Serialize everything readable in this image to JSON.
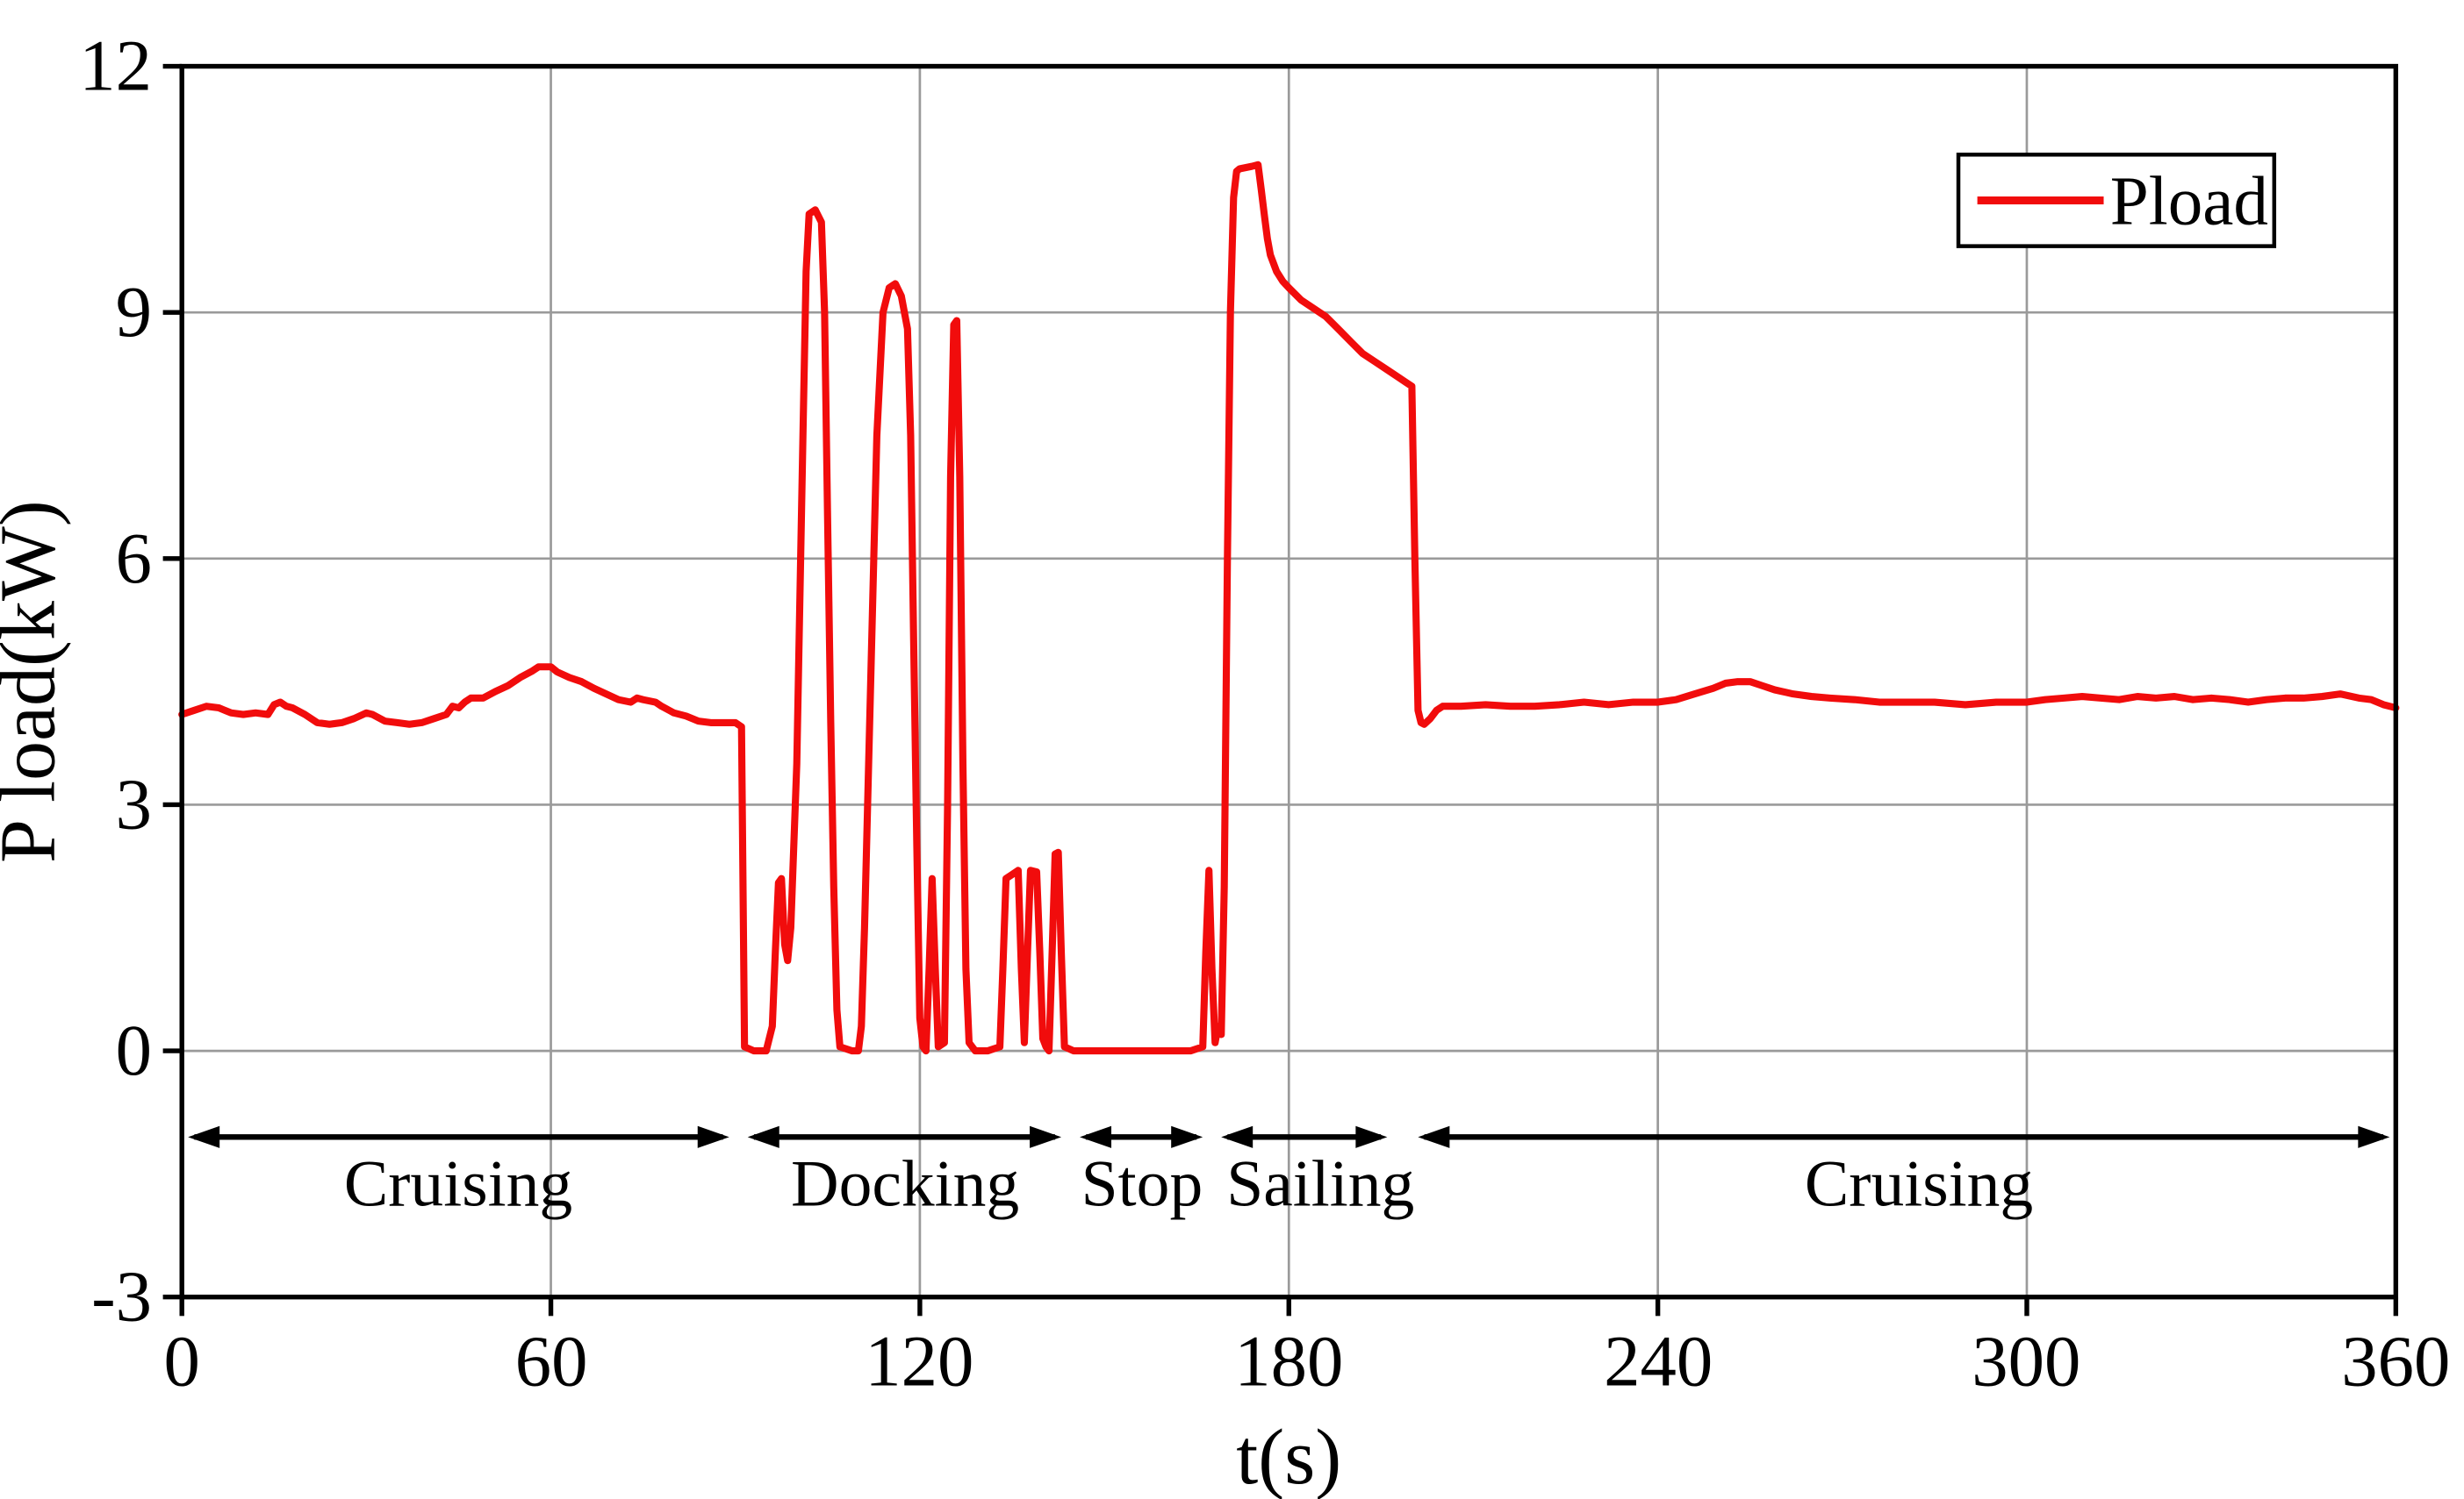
{
  "chart_data": {
    "type": "line",
    "title": "",
    "xlabel": "t(s)",
    "ylabel": "P load(kW)",
    "xlim": [
      0,
      360
    ],
    "ylim": [
      -3,
      12
    ],
    "x_ticks": [
      0,
      60,
      120,
      180,
      240,
      300,
      360
    ],
    "y_ticks": [
      -3,
      0,
      3,
      6,
      9,
      12
    ],
    "grid": true,
    "grid_color": "#9a9a9a",
    "axis_color": "#000000",
    "legend": {
      "position": "top-right",
      "entries": [
        {
          "label": "Pload",
          "color": "#f10c0c"
        }
      ]
    },
    "series": [
      {
        "name": "Pload",
        "color": "#f10c0c",
        "points": [
          [
            0,
            4.1
          ],
          [
            2,
            4.15
          ],
          [
            4,
            4.2
          ],
          [
            6,
            4.18
          ],
          [
            8,
            4.12
          ],
          [
            10,
            4.1
          ],
          [
            12,
            4.12
          ],
          [
            14,
            4.1
          ],
          [
            15,
            4.22
          ],
          [
            16,
            4.25
          ],
          [
            17,
            4.2
          ],
          [
            18,
            4.18
          ],
          [
            20,
            4.1
          ],
          [
            22,
            4.0
          ],
          [
            24,
            3.98
          ],
          [
            26,
            4.0
          ],
          [
            28,
            4.05
          ],
          [
            30,
            4.12
          ],
          [
            31,
            4.1
          ],
          [
            33,
            4.02
          ],
          [
            35,
            4.0
          ],
          [
            37,
            3.98
          ],
          [
            39,
            4.0
          ],
          [
            41,
            4.05
          ],
          [
            43,
            4.1
          ],
          [
            44,
            4.2
          ],
          [
            45,
            4.18
          ],
          [
            46,
            4.25
          ],
          [
            47,
            4.3
          ],
          [
            49,
            4.3
          ],
          [
            51,
            4.38
          ],
          [
            53,
            4.45
          ],
          [
            55,
            4.55
          ],
          [
            57,
            4.63
          ],
          [
            58,
            4.68
          ],
          [
            60,
            4.68
          ],
          [
            61,
            4.62
          ],
          [
            63,
            4.55
          ],
          [
            65,
            4.5
          ],
          [
            67,
            4.42
          ],
          [
            69,
            4.35
          ],
          [
            71,
            4.28
          ],
          [
            73,
            4.25
          ],
          [
            74,
            4.3
          ],
          [
            75,
            4.28
          ],
          [
            77,
            4.25
          ],
          [
            78,
            4.2
          ],
          [
            80,
            4.12
          ],
          [
            82,
            4.08
          ],
          [
            84,
            4.02
          ],
          [
            86,
            4.0
          ],
          [
            88,
            4.0
          ],
          [
            90,
            4.0
          ],
          [
            91,
            3.95
          ],
          [
            91.5,
            0.05
          ],
          [
            93,
            0.0
          ],
          [
            95,
            0.0
          ],
          [
            96,
            0.3
          ],
          [
            96.5,
            1.2
          ],
          [
            97,
            2.05
          ],
          [
            97.5,
            2.1
          ],
          [
            98,
            1.3
          ],
          [
            98.5,
            1.1
          ],
          [
            99,
            1.5
          ],
          [
            100,
            3.5
          ],
          [
            101,
            7.5
          ],
          [
            101.5,
            9.5
          ],
          [
            102,
            10.2
          ],
          [
            103,
            10.25
          ],
          [
            104,
            10.1
          ],
          [
            104.5,
            9.0
          ],
          [
            105,
            6.5
          ],
          [
            105.5,
            4.0
          ],
          [
            106,
            2.0
          ],
          [
            106.5,
            0.5
          ],
          [
            107,
            0.05
          ],
          [
            109,
            0.0
          ],
          [
            110,
            0.0
          ],
          [
            110.5,
            0.3
          ],
          [
            111,
            1.5
          ],
          [
            112,
            4.5
          ],
          [
            113,
            7.5
          ],
          [
            114,
            9.0
          ],
          [
            115,
            9.3
          ],
          [
            116,
            9.35
          ],
          [
            117,
            9.2
          ],
          [
            118,
            8.8
          ],
          [
            118.5,
            7.5
          ],
          [
            119,
            5.0
          ],
          [
            119.5,
            2.5
          ],
          [
            120,
            0.4
          ],
          [
            120.5,
            0.05
          ],
          [
            121,
            0.0
          ],
          [
            121.5,
            1.0
          ],
          [
            122,
            2.1
          ],
          [
            122.5,
            1.0
          ],
          [
            123,
            0.05
          ],
          [
            124,
            0.1
          ],
          [
            124.5,
            3.0
          ],
          [
            125,
            7.0
          ],
          [
            125.5,
            8.85
          ],
          [
            126,
            8.9
          ],
          [
            126.5,
            7.0
          ],
          [
            127,
            3.5
          ],
          [
            127.5,
            1.0
          ],
          [
            128,
            0.1
          ],
          [
            129,
            0.0
          ],
          [
            131,
            0.0
          ],
          [
            133,
            0.05
          ],
          [
            133.5,
            1.0
          ],
          [
            134,
            2.1
          ],
          [
            135,
            2.15
          ],
          [
            136,
            2.2
          ],
          [
            136.5,
            1.0
          ],
          [
            137,
            0.1
          ],
          [
            137.5,
            1.2
          ],
          [
            138,
            2.2
          ],
          [
            139,
            2.18
          ],
          [
            139.5,
            1.2
          ],
          [
            140,
            0.15
          ],
          [
            140.5,
            0.05
          ],
          [
            141,
            0.0
          ],
          [
            141.5,
            1.2
          ],
          [
            142,
            2.4
          ],
          [
            142.5,
            2.42
          ],
          [
            143,
            1.2
          ],
          [
            143.5,
            0.05
          ],
          [
            145,
            0.0
          ],
          [
            150,
            0.0
          ],
          [
            155,
            0.0
          ],
          [
            160,
            0.0
          ],
          [
            164,
            0.0
          ],
          [
            166,
            0.05
          ],
          [
            166.5,
            1.2
          ],
          [
            167,
            2.2
          ],
          [
            167.5,
            1.0
          ],
          [
            168,
            0.1
          ],
          [
            168.5,
            0.3
          ],
          [
            169,
            0.2
          ],
          [
            169.5,
            2.0
          ],
          [
            170,
            6.0
          ],
          [
            170.5,
            9.0
          ],
          [
            171,
            10.4
          ],
          [
            171.5,
            10.72
          ],
          [
            172,
            10.75
          ],
          [
            174,
            10.78
          ],
          [
            175,
            10.8
          ],
          [
            175.5,
            10.5
          ],
          [
            176,
            10.2
          ],
          [
            176.5,
            9.9
          ],
          [
            177,
            9.7
          ],
          [
            178,
            9.5
          ],
          [
            179,
            9.38
          ],
          [
            180,
            9.3
          ],
          [
            182,
            9.15
          ],
          [
            184,
            9.05
          ],
          [
            186,
            8.95
          ],
          [
            188,
            8.8
          ],
          [
            190,
            8.65
          ],
          [
            192,
            8.5
          ],
          [
            194,
            8.4
          ],
          [
            196,
            8.3
          ],
          [
            198,
            8.2
          ],
          [
            199,
            8.15
          ],
          [
            200,
            8.1
          ],
          [
            200.5,
            6.0
          ],
          [
            201,
            4.15
          ],
          [
            201.5,
            4.0
          ],
          [
            202,
            3.98
          ],
          [
            203,
            4.05
          ],
          [
            204,
            4.15
          ],
          [
            205,
            4.2
          ],
          [
            208,
            4.2
          ],
          [
            212,
            4.22
          ],
          [
            216,
            4.2
          ],
          [
            220,
            4.2
          ],
          [
            224,
            4.22
          ],
          [
            228,
            4.25
          ],
          [
            232,
            4.22
          ],
          [
            236,
            4.25
          ],
          [
            240,
            4.25
          ],
          [
            243,
            4.28
          ],
          [
            246,
            4.35
          ],
          [
            249,
            4.42
          ],
          [
            251,
            4.48
          ],
          [
            253,
            4.5
          ],
          [
            255,
            4.5
          ],
          [
            257,
            4.45
          ],
          [
            259,
            4.4
          ],
          [
            262,
            4.35
          ],
          [
            265,
            4.32
          ],
          [
            268,
            4.3
          ],
          [
            272,
            4.28
          ],
          [
            276,
            4.25
          ],
          [
            280,
            4.25
          ],
          [
            285,
            4.25
          ],
          [
            290,
            4.22
          ],
          [
            295,
            4.25
          ],
          [
            300,
            4.25
          ],
          [
            303,
            4.28
          ],
          [
            306,
            4.3
          ],
          [
            309,
            4.32
          ],
          [
            312,
            4.3
          ],
          [
            315,
            4.28
          ],
          [
            318,
            4.32
          ],
          [
            321,
            4.3
          ],
          [
            324,
            4.32
          ],
          [
            327,
            4.28
          ],
          [
            330,
            4.3
          ],
          [
            333,
            4.28
          ],
          [
            336,
            4.25
          ],
          [
            339,
            4.28
          ],
          [
            342,
            4.3
          ],
          [
            345,
            4.3
          ],
          [
            348,
            4.32
          ],
          [
            351,
            4.35
          ],
          [
            354,
            4.3
          ],
          [
            356,
            4.28
          ],
          [
            358,
            4.22
          ],
          [
            360,
            4.18
          ]
        ]
      }
    ],
    "phases": [
      {
        "label": "Cruising",
        "from": 1,
        "to": 89
      },
      {
        "label": "Docking",
        "from": 92,
        "to": 143
      },
      {
        "label": "Stop",
        "from": 146,
        "to": 166
      },
      {
        "label": "Sailing",
        "from": 169,
        "to": 196
      },
      {
        "label": "Cruising",
        "from": 201,
        "to": 359
      }
    ],
    "phase_y": -1.05
  }
}
